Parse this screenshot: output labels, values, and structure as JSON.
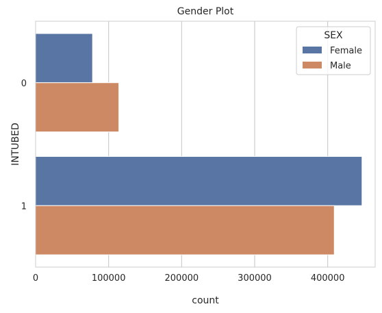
{
  "chart_data": {
    "type": "bar",
    "orientation": "horizontal",
    "title": "Gender Plot",
    "xlabel": "count",
    "ylabel": "INTUBED",
    "categories": [
      "0",
      "1"
    ],
    "series": [
      {
        "name": "Female",
        "values": [
          78000,
          447000
        ],
        "color": "#5875a4"
      },
      {
        "name": "Male",
        "values": [
          114000,
          409000
        ],
        "color": "#cc8963"
      }
    ],
    "xlim": [
      0,
      465000
    ],
    "xticks": [
      0,
      100000,
      200000,
      300000,
      400000
    ],
    "xtick_labels": [
      "0",
      "100000",
      "200000",
      "300000",
      "400000"
    ],
    "grid": "vertical",
    "legend": {
      "title": "SEX",
      "placement": "top-right"
    }
  }
}
